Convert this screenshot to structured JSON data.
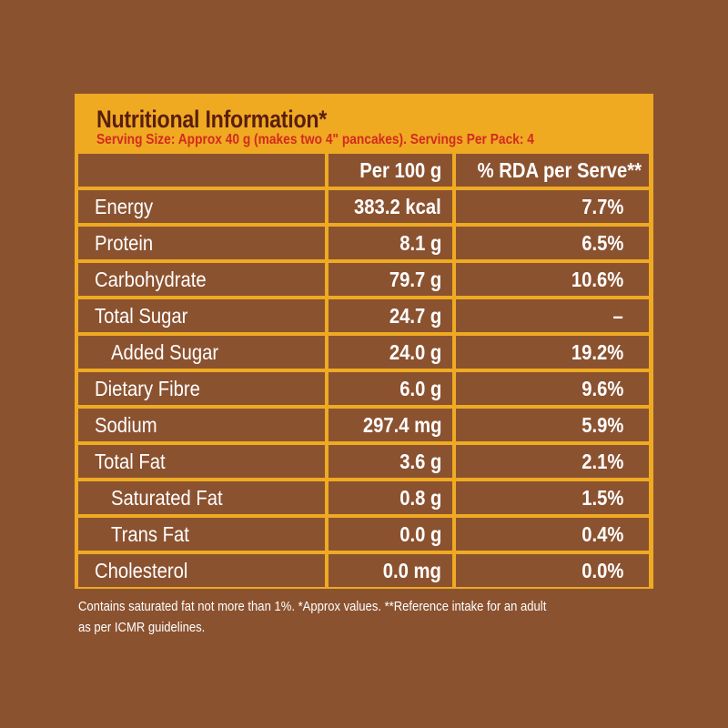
{
  "title": "Nutritional Information*",
  "serving": "Serving Size: Approx 40 g (makes two 4\" pancakes). Servings Per Pack: 4",
  "headers": [
    "",
    "Per 100 g",
    "% RDA per Serve**"
  ],
  "rows": [
    {
      "label": "Energy",
      "per100": "383.2 kcal",
      "rda": "7.7%",
      "indent": false
    },
    {
      "label": "Protein",
      "per100": "8.1 g",
      "rda": "6.5%",
      "indent": false
    },
    {
      "label": "Carbohydrate",
      "per100": "79.7 g",
      "rda": "10.6%",
      "indent": false
    },
    {
      "label": "Total Sugar",
      "per100": "24.7 g",
      "rda": "–",
      "indent": false
    },
    {
      "label": "Added Sugar",
      "per100": "24.0 g",
      "rda": "19.2%",
      "indent": true
    },
    {
      "label": "Dietary Fibre",
      "per100": "6.0 g",
      "rda": "9.6%",
      "indent": false
    },
    {
      "label": "Sodium",
      "per100": "297.4 mg",
      "rda": "5.9%",
      "indent": false
    },
    {
      "label": "Total Fat",
      "per100": "3.6 g",
      "rda": "2.1%",
      "indent": false
    },
    {
      "label": "Saturated Fat",
      "per100": "0.8 g",
      "rda": "1.5%",
      "indent": true
    },
    {
      "label": "Trans Fat",
      "per100": "0.0 g",
      "rda": "0.4%",
      "indent": true
    },
    {
      "label": "Cholesterol",
      "per100": "0.0 mg",
      "rda": "0.0%",
      "indent": false
    }
  ],
  "footnote": [
    "Contains saturated fat not more than 1%. *Approx values. **Reference intake for an adult",
    "as per ICMR guidelines."
  ],
  "colors": {
    "background": "#8b5230",
    "accent": "#efaa22",
    "title": "#5a1e0e",
    "serving": "#d42a1e"
  }
}
